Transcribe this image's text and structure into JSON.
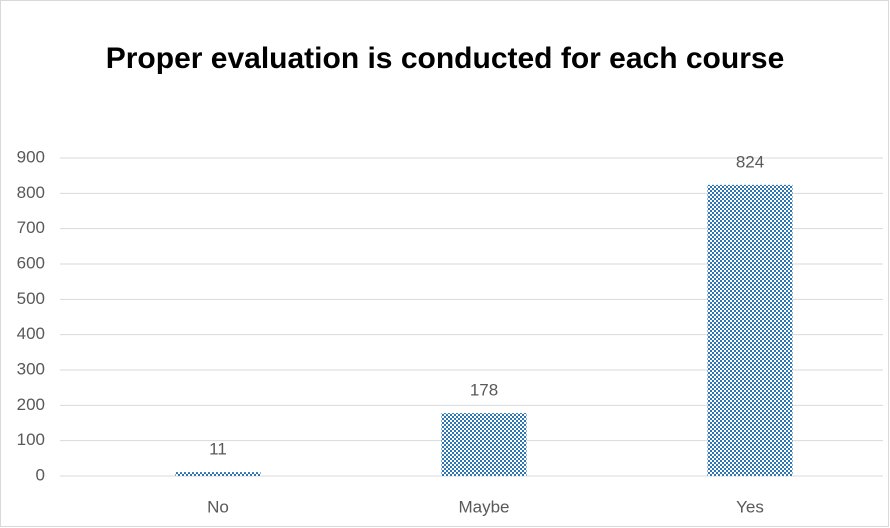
{
  "chart_data": {
    "type": "bar",
    "title": "Proper evaluation is conducted for each course",
    "categories": [
      "No",
      "Maybe",
      "Yes"
    ],
    "values": [
      11,
      178,
      824
    ],
    "color": "#2e75b6",
    "ylim": [
      0,
      900
    ],
    "yticks": [
      0,
      100,
      200,
      300,
      400,
      500,
      600,
      700,
      800,
      900
    ],
    "grid": true
  }
}
